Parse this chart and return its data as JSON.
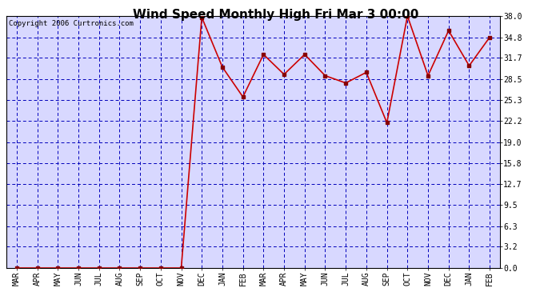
{
  "title": "Wind Speed Monthly High Fri Mar 3 00:00",
  "copyright": "Copyright 2006 Curtronics.com",
  "x_labels": [
    "MAR",
    "APR",
    "MAY",
    "JUN",
    "JUL",
    "AUG",
    "SEP",
    "OCT",
    "NOV",
    "DEC",
    "JAN",
    "FEB",
    "MAR",
    "APR",
    "MAY",
    "JUN",
    "JUL",
    "AUG",
    "SEP",
    "OCT",
    "NOV",
    "DEC",
    "JAN",
    "FEB"
  ],
  "y_values": [
    0.0,
    0.0,
    0.0,
    0.0,
    0.0,
    0.0,
    0.0,
    0.0,
    0.0,
    37.8,
    30.3,
    25.8,
    32.2,
    29.2,
    32.2,
    29.0,
    27.9,
    29.5,
    21.9,
    38.0,
    29.0,
    35.8,
    30.5,
    34.8
  ],
  "yticks": [
    0.0,
    3.2,
    6.3,
    9.5,
    12.7,
    15.8,
    19.0,
    22.2,
    25.3,
    28.5,
    31.7,
    34.8,
    38.0
  ],
  "ymin": 0.0,
  "ymax": 38.0,
  "line_color": "#cc0000",
  "marker_color": "#880000",
  "bg_color": "#d8d8ff",
  "grid_color": "#0000bb",
  "outer_bg": "#ffffff",
  "title_fontsize": 11,
  "axis_label_fontsize": 7,
  "copyright_fontsize": 6.5
}
